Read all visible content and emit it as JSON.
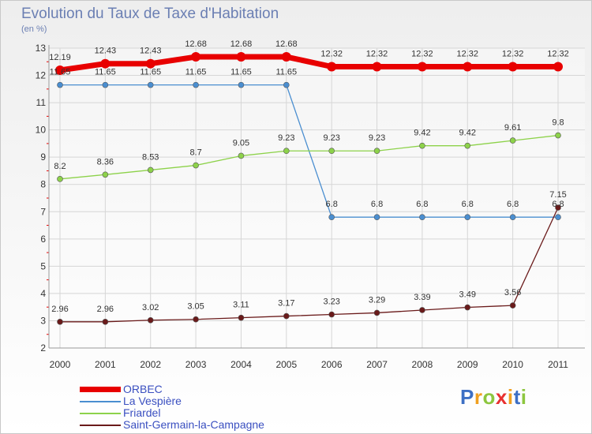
{
  "title": "Evolution du Taux de Taxe d'Habitation",
  "subtitle": "(en %)",
  "colors": {
    "ORBEC": "#e80000",
    "La Vespière": "#4a8ed0",
    "Friardel": "#8dd24a",
    "Saint-Germain-la-Campagne": "#6a1a1a"
  },
  "chart_data": {
    "type": "line",
    "x": [
      "2000",
      "2001",
      "2002",
      "2003",
      "2004",
      "2005",
      "2006",
      "2007",
      "2008",
      "2009",
      "2010",
      "2011"
    ],
    "ylim": [
      2,
      13
    ],
    "yticks": [
      "2",
      "3",
      "4",
      "5",
      "6",
      "7",
      "8",
      "9",
      "10",
      "11",
      "12",
      "13"
    ],
    "grid": true,
    "legend_position": "bottom-left",
    "series": [
      {
        "name": "ORBEC",
        "values": [
          12.19,
          12.43,
          12.43,
          12.68,
          12.68,
          12.68,
          12.32,
          12.32,
          12.32,
          12.32,
          12.32,
          12.32
        ],
        "labels": [
          "12.19",
          "12.43",
          "12.43",
          "12.68",
          "12.68",
          "12.68",
          "12.32",
          "12.32",
          "12.32",
          "12.32",
          "12.32",
          "12.32"
        ]
      },
      {
        "name": "La Vespière",
        "values": [
          11.65,
          11.65,
          11.65,
          11.65,
          11.65,
          11.65,
          6.8,
          6.8,
          6.8,
          6.8,
          6.8,
          6.8
        ],
        "labels": [
          "11.65",
          "11.65",
          "11.65",
          "11.65",
          "11.65",
          "11.65",
          "6.8",
          "6.8",
          "6.8",
          "6.8",
          "6.8",
          "6.8"
        ]
      },
      {
        "name": "Friardel",
        "values": [
          8.2,
          8.36,
          8.53,
          8.7,
          9.05,
          9.23,
          9.23,
          9.23,
          9.42,
          9.42,
          9.61,
          9.8
        ],
        "labels": [
          "8.2",
          "8.36",
          "8.53",
          "8.7",
          "9.05",
          "9.23",
          "9.23",
          "9.23",
          "9.42",
          "9.42",
          "9.61",
          "9.8"
        ]
      },
      {
        "name": "Saint-Germain-la-Campagne",
        "values": [
          2.96,
          2.96,
          3.02,
          3.05,
          3.11,
          3.17,
          3.23,
          3.29,
          3.39,
          3.49,
          3.56,
          7.15
        ],
        "labels": [
          "2.96",
          "2.96",
          "3.02",
          "3.05",
          "3.11",
          "3.17",
          "3.23",
          "3.29",
          "3.39",
          "3.49",
          "3.56",
          "7.15"
        ]
      }
    ]
  },
  "logo": {
    "letters": [
      "P",
      "r",
      "o",
      "x",
      "i",
      "t",
      "i"
    ],
    "colors": [
      "#3d6fc4",
      "#f0a020",
      "#8dc63f",
      "#e83030",
      "#f0a020",
      "#3d6fc4",
      "#8dc63f"
    ]
  }
}
